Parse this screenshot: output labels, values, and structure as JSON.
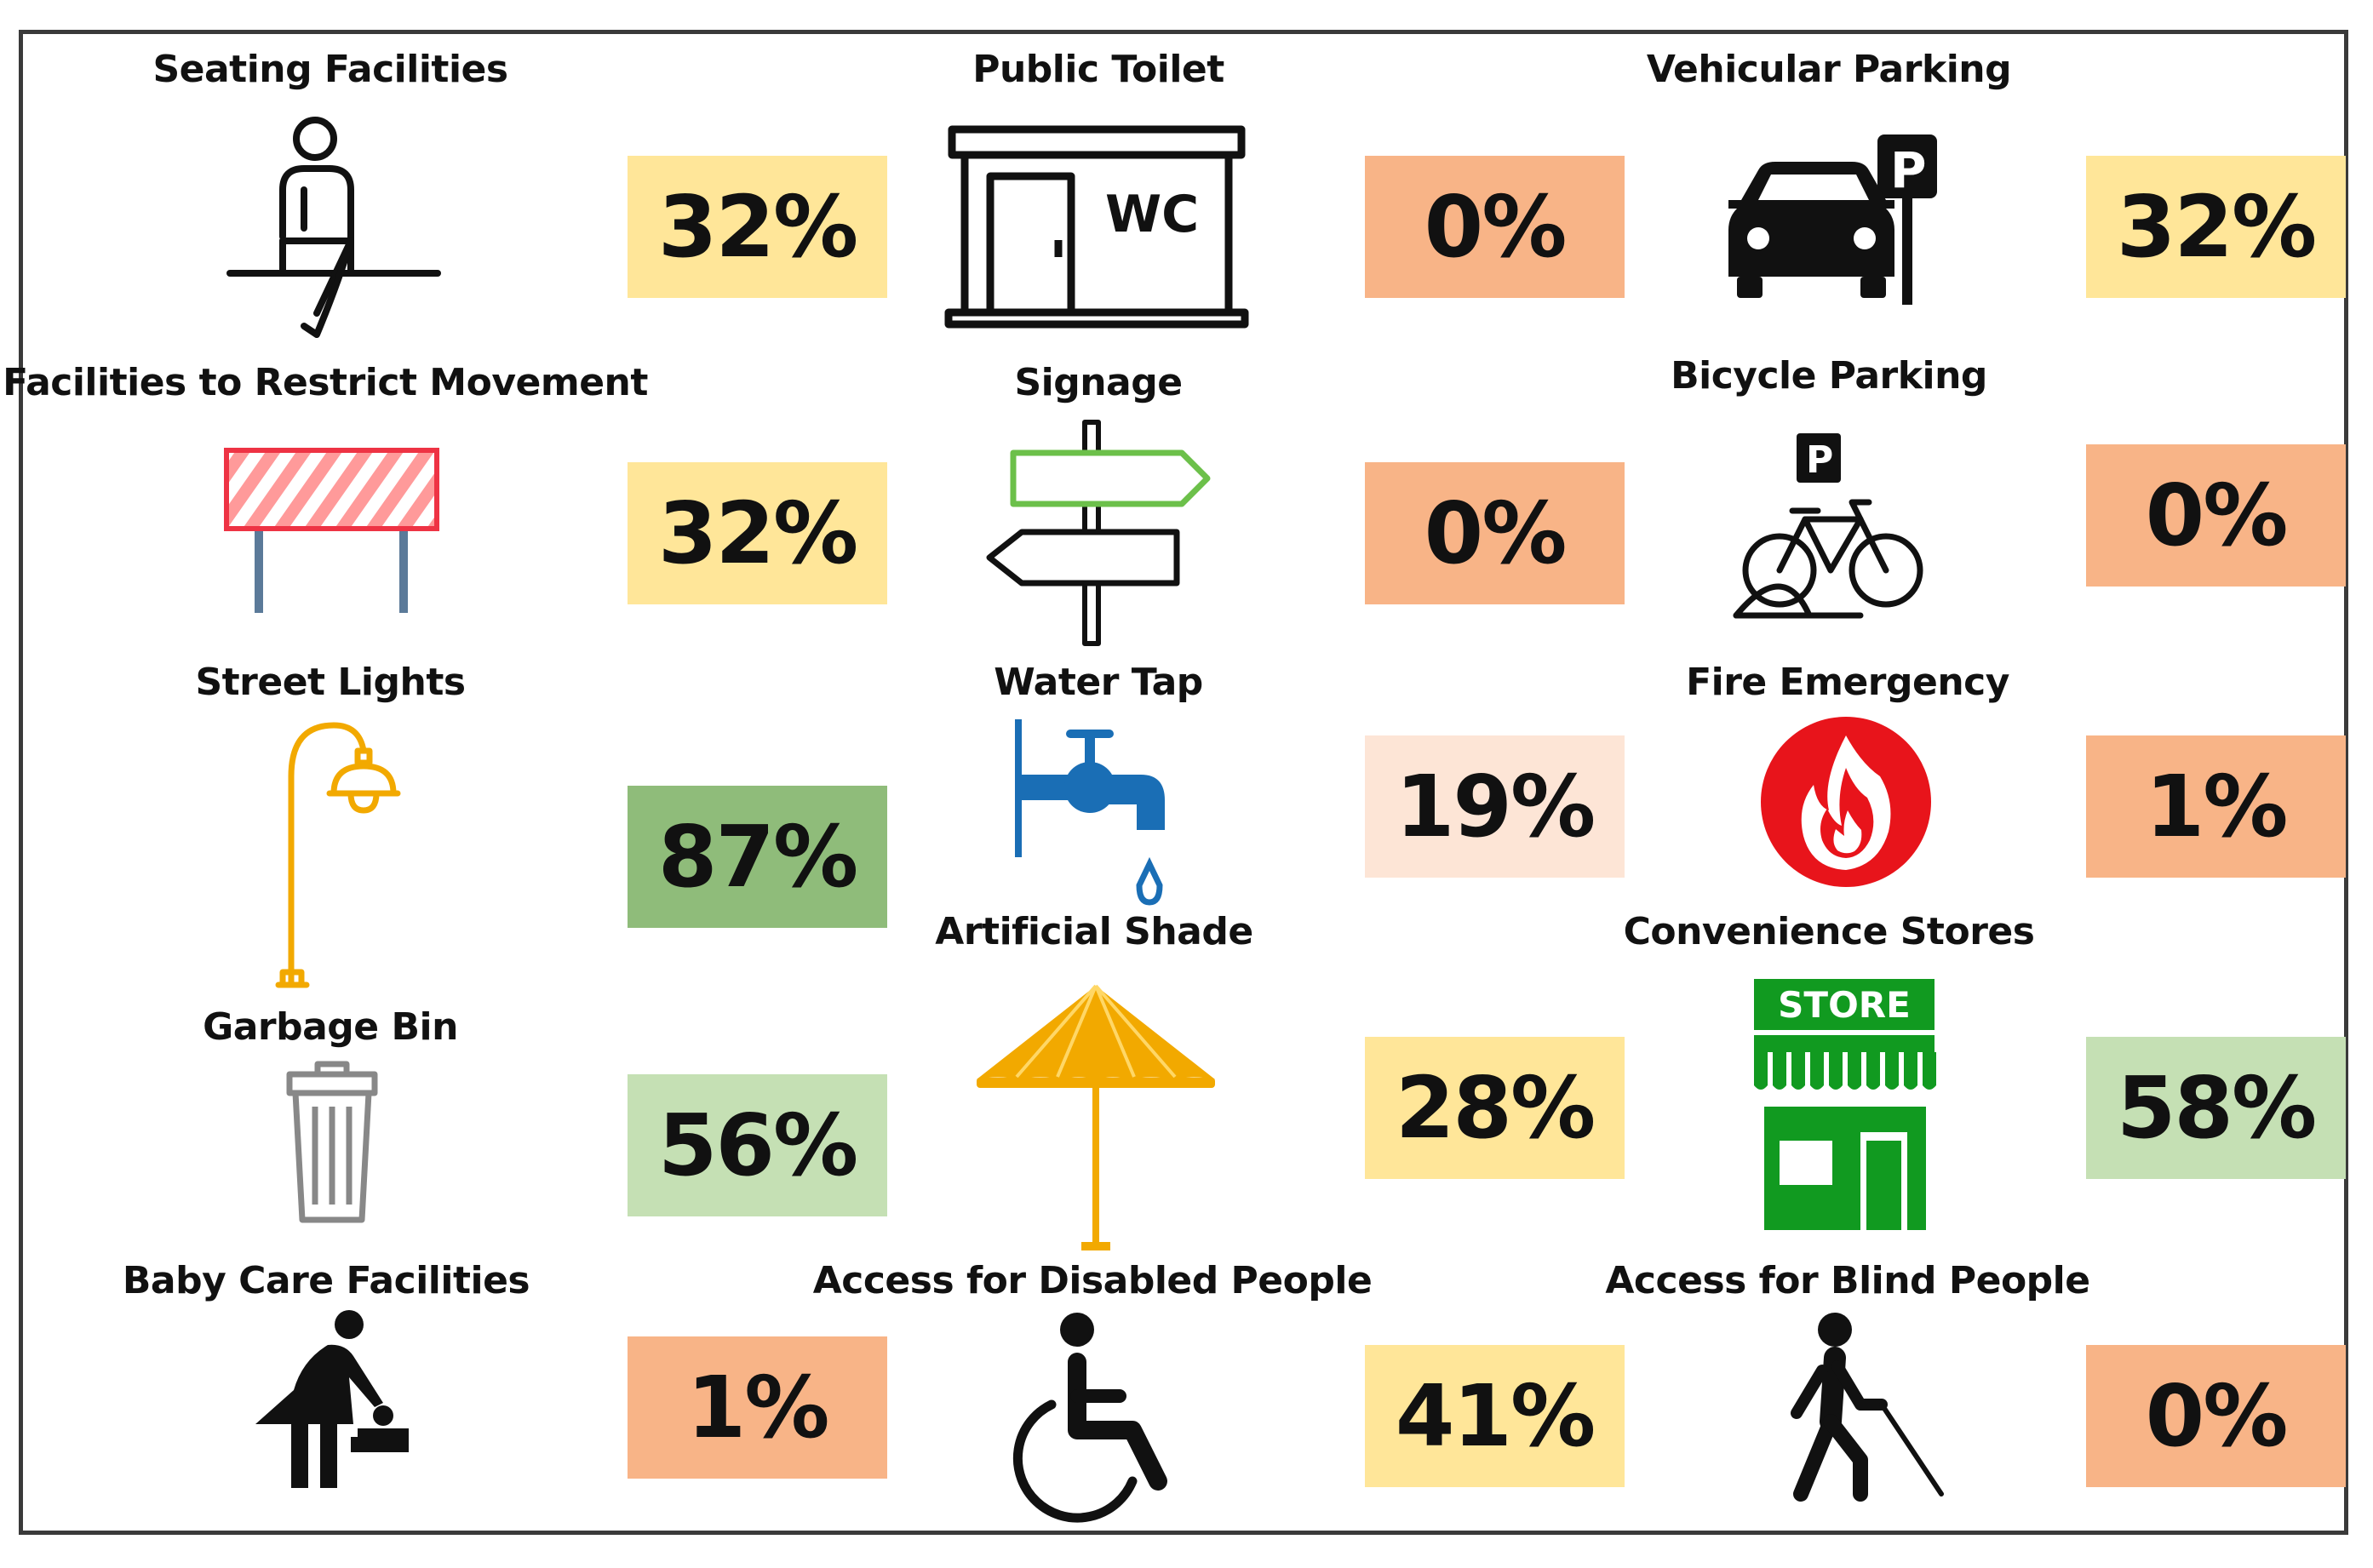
{
  "facilities": [
    {
      "id": "seating",
      "label": "Seating Facilities",
      "value": "32%",
      "icon": "seated-person-icon",
      "level": "medium"
    },
    {
      "id": "toilet",
      "label": "Public Toilet",
      "value": "0%",
      "icon": "wc-building-icon",
      "level": "low"
    },
    {
      "id": "vehicle-parking",
      "label": "Vehicular Parking",
      "value": "32%",
      "icon": "car-parking-icon",
      "level": "medium"
    },
    {
      "id": "restrict",
      "label": "Facilities to Restrict Movement",
      "value": "32%",
      "icon": "barrier-icon",
      "level": "medium"
    },
    {
      "id": "signage",
      "label": "Signage",
      "value": "0%",
      "icon": "signpost-icon",
      "level": "low"
    },
    {
      "id": "bicycle-parking",
      "label": "Bicycle Parking",
      "value": "0%",
      "icon": "bicycle-parking-icon",
      "level": "low"
    },
    {
      "id": "street-lights",
      "label": "Street Lights",
      "value": "87%",
      "icon": "street-lamp-icon",
      "level": "very-high"
    },
    {
      "id": "water-tap",
      "label": "Water Tap",
      "value": "19%",
      "icon": "water-tap-icon",
      "level": "low-medium"
    },
    {
      "id": "fire",
      "label": "Fire Emergency",
      "value": "1%",
      "icon": "fire-icon",
      "level": "low"
    },
    {
      "id": "garbage",
      "label": "Garbage Bin",
      "value": "56%",
      "icon": "trash-bin-icon",
      "level": "high"
    },
    {
      "id": "shade",
      "label": "Artificial Shade",
      "value": "28%",
      "icon": "umbrella-icon",
      "level": "medium"
    },
    {
      "id": "stores",
      "label": "Convenience Stores",
      "value": "58%",
      "icon": "store-icon",
      "level": "high"
    },
    {
      "id": "baby-care",
      "label": "Baby Care Facilities",
      "value": "1%",
      "icon": "baby-changing-icon",
      "level": "low"
    },
    {
      "id": "disabled",
      "label": "Access for Disabled People",
      "value": "41%",
      "icon": "wheelchair-icon",
      "level": "medium"
    },
    {
      "id": "blind",
      "label": "Access for Blind People",
      "value": "0%",
      "icon": "blind-person-icon",
      "level": "low"
    }
  ],
  "level_colors": {
    "low": "#f8b487",
    "low-medium": "#fde5d6",
    "medium": "#ffe699",
    "high": "#c5e0b4",
    "very-high": "#8fbc7a"
  }
}
